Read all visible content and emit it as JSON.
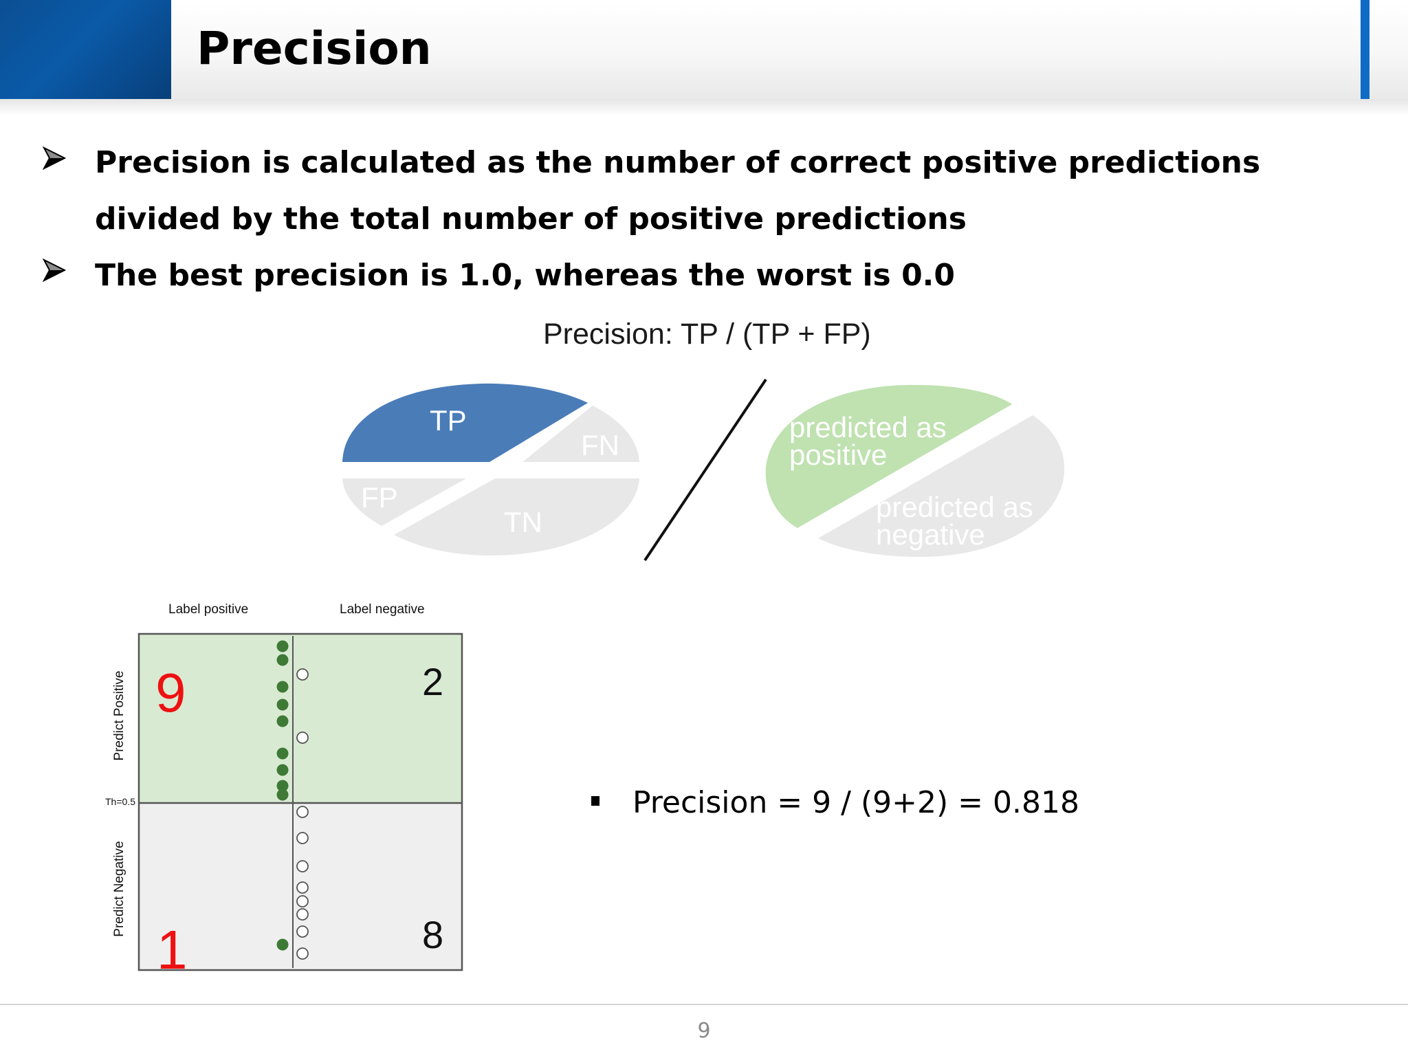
{
  "slide": {
    "title": "Precision",
    "bullets": [
      "Precision is calculated as the number of correct positive predictions",
      "divided by the total number of positive predictions",
      "The best precision is 1.0, whereas the worst is 0.0"
    ],
    "page_number": "9",
    "colors": {
      "header_blue": "#0a5aa8",
      "tp_blue": "#4a7cb8",
      "predicted_positive_green": "#bfe2b0",
      "neutral_gray": "#e8e8e8",
      "cell_green": "#d9ead3",
      "cell_gray": "#efefef",
      "dot_green": "#3e7a36",
      "number_red": "#ee1111"
    }
  },
  "formula_diagram": {
    "title": "Precision: TP / (TP + FP)",
    "left_pie": {
      "tp": "TP",
      "fn": "FN",
      "fp": "FP",
      "tn": "TN"
    },
    "right_pie": {
      "predicted_positive": [
        "predicted as",
        "positive"
      ],
      "predicted_negative": [
        "predicted as",
        "negative"
      ]
    }
  },
  "confusion_grid": {
    "col_labels": [
      "Label positive",
      "Label negative"
    ],
    "row_labels": [
      "Predict Positive",
      "Predict Negative"
    ],
    "threshold_label": "Th=0.5",
    "cells": {
      "tp": "9",
      "fp": "2",
      "fn": "1",
      "tn": "8"
    }
  },
  "result": {
    "text": "Precision = 9 / (9+2) = 0.818"
  }
}
